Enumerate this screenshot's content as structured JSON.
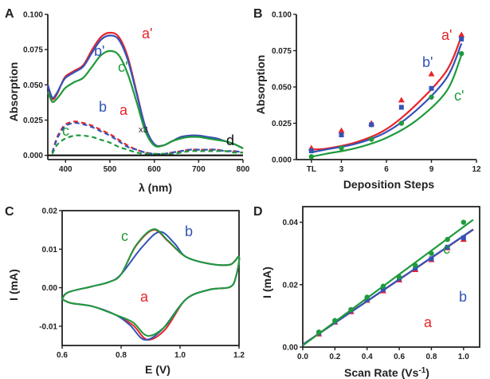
{
  "colors": {
    "a": "#e8242a",
    "b": "#3353b8",
    "c": "#1f9a3c",
    "d": "#111111",
    "axis": "#222222"
  },
  "chart_data": [
    {
      "panel": "A",
      "type": "line",
      "xlabel": "λ (nm)",
      "ylabel": "Absorption",
      "xlim": [
        360,
        800
      ],
      "ylim": [
        -0.003,
        0.1
      ],
      "xticks": [
        "400",
        "500",
        "600",
        "700",
        "800"
      ],
      "yticks": [
        "0.000",
        "0.025",
        "0.050",
        "0.075",
        "0.100"
      ],
      "annotations": {
        "x3": "x3"
      },
      "series": [
        {
          "name": "a'",
          "color": "a",
          "dash": false,
          "x": [
            360,
            370,
            380,
            390,
            400,
            420,
            440,
            460,
            480,
            500,
            520,
            540,
            560,
            580,
            600,
            620,
            640,
            660,
            680,
            700,
            720,
            740,
            760,
            780,
            800
          ],
          "y": [
            0.05,
            0.04,
            0.043,
            0.05,
            0.056,
            0.06,
            0.064,
            0.075,
            0.084,
            0.087,
            0.084,
            0.07,
            0.045,
            0.02,
            0.008,
            0.007,
            0.01,
            0.013,
            0.014,
            0.014,
            0.013,
            0.012,
            0.01,
            0.008,
            0.005
          ]
        },
        {
          "name": "b'",
          "color": "b",
          "dash": false,
          "x": [
            360,
            370,
            380,
            390,
            400,
            420,
            440,
            460,
            480,
            500,
            520,
            540,
            560,
            580,
            600,
            620,
            640,
            660,
            680,
            700,
            720,
            740,
            760,
            780,
            800
          ],
          "y": [
            0.05,
            0.041,
            0.044,
            0.05,
            0.055,
            0.059,
            0.063,
            0.073,
            0.082,
            0.085,
            0.082,
            0.068,
            0.044,
            0.02,
            0.008,
            0.007,
            0.01,
            0.013,
            0.014,
            0.014,
            0.013,
            0.012,
            0.01,
            0.008,
            0.005
          ]
        },
        {
          "name": "c'",
          "color": "c",
          "dash": false,
          "x": [
            360,
            370,
            380,
            390,
            400,
            420,
            440,
            460,
            480,
            500,
            520,
            540,
            560,
            580,
            600,
            620,
            640,
            660,
            680,
            700,
            720,
            740,
            760,
            780,
            800
          ],
          "y": [
            0.045,
            0.038,
            0.04,
            0.044,
            0.048,
            0.052,
            0.055,
            0.063,
            0.071,
            0.074,
            0.071,
            0.058,
            0.038,
            0.017,
            0.007,
            0.007,
            0.01,
            0.012,
            0.013,
            0.013,
            0.012,
            0.011,
            0.01,
            0.008,
            0.005
          ]
        },
        {
          "name": "a",
          "color": "a",
          "dash": true,
          "x": [
            370,
            380,
            390,
            400,
            420,
            440,
            460,
            480,
            500,
            520,
            540,
            560,
            580,
            600,
            620,
            640,
            660,
            680,
            700,
            720,
            740,
            760,
            780,
            800
          ],
          "y": [
            0.002,
            0.012,
            0.018,
            0.022,
            0.024,
            0.023,
            0.021,
            0.018,
            0.015,
            0.011,
            0.007,
            0.004,
            0.002,
            0.001,
            0.001,
            0.002,
            0.003,
            0.004,
            0.004,
            0.004,
            0.004,
            0.003,
            0.003,
            0.002
          ]
        },
        {
          "name": "b",
          "color": "b",
          "dash": true,
          "x": [
            370,
            380,
            390,
            400,
            420,
            440,
            460,
            480,
            500,
            520,
            540,
            560,
            580,
            600,
            620,
            640,
            660,
            680,
            700,
            720,
            740,
            760,
            780,
            800
          ],
          "y": [
            0.002,
            0.011,
            0.017,
            0.021,
            0.023,
            0.022,
            0.02,
            0.017,
            0.014,
            0.01,
            0.006,
            0.004,
            0.002,
            0.001,
            0.001,
            0.002,
            0.003,
            0.004,
            0.004,
            0.004,
            0.004,
            0.003,
            0.003,
            0.002
          ]
        },
        {
          "name": "c",
          "color": "c",
          "dash": true,
          "x": [
            370,
            380,
            390,
            400,
            420,
            440,
            460,
            480,
            500,
            520,
            540,
            560,
            580,
            600,
            620,
            640,
            660,
            680,
            700,
            720,
            740,
            760,
            780,
            800
          ],
          "y": [
            0.001,
            0.007,
            0.01,
            0.012,
            0.014,
            0.014,
            0.013,
            0.011,
            0.009,
            0.006,
            0.004,
            0.002,
            0.001,
            0.001,
            0.001,
            0.001,
            0.002,
            0.003,
            0.003,
            0.003,
            0.003,
            0.003,
            0.002,
            0.002
          ]
        },
        {
          "name": "d",
          "color": "d",
          "dash": false,
          "x": [
            360,
            400,
            500,
            600,
            700,
            800
          ],
          "y": [
            0.0,
            0.0,
            0.0,
            0.0,
            0.0,
            0.0
          ]
        }
      ]
    },
    {
      "panel": "B",
      "type": "scatter",
      "xlabel": "Deposition Steps",
      "ylabel": "Absorption",
      "xlim": [
        0,
        12
      ],
      "ylim": [
        0,
        0.1
      ],
      "xticks": [
        "TL",
        "3",
        "6",
        "9",
        "12"
      ],
      "yticks": [
        "0.000",
        "0.025",
        "0.050",
        "0.075",
        "0.100"
      ],
      "series": [
        {
          "name": "a'",
          "color": "a",
          "marker": "triangle",
          "x": [
            1,
            3,
            5,
            7,
            9,
            11
          ],
          "y": [
            0.008,
            0.02,
            0.025,
            0.041,
            0.059,
            0.086
          ],
          "fit": [
            0.007,
            0.0076,
            0.012,
            0.021,
            0.038,
            0.061,
            0.085
          ]
        },
        {
          "name": "b'",
          "color": "b",
          "marker": "square",
          "x": [
            1,
            3,
            5,
            7,
            9,
            11
          ],
          "y": [
            0.006,
            0.017,
            0.024,
            0.036,
            0.049,
            0.083
          ],
          "fit": [
            0.005,
            0.007,
            0.011,
            0.019,
            0.034,
            0.056,
            0.08
          ]
        },
        {
          "name": "c'",
          "color": "c",
          "marker": "circle",
          "x": [
            1,
            3,
            5,
            7,
            9,
            11
          ],
          "y": [
            0.002,
            0.008,
            0.014,
            0.025,
            0.043,
            0.073
          ],
          "fit": [
            0.002,
            0.004,
            0.008,
            0.015,
            0.027,
            0.047,
            0.072
          ]
        }
      ],
      "fit_x": [
        1,
        2,
        4,
        6,
        8,
        10,
        11
      ]
    },
    {
      "panel": "C",
      "type": "line",
      "xlabel": "E (V)",
      "ylabel": "I (mA)",
      "xlim": [
        0.6,
        1.2
      ],
      "ylim": [
        -0.015,
        0.02
      ],
      "xticks": [
        "0.6",
        "0.8",
        "1.0",
        "1.2"
      ],
      "yticks": [
        "-0.01",
        "0.00",
        "0.01",
        "0.02"
      ],
      "series": [
        {
          "name": "a",
          "color": "a",
          "peak_anodic": [
            0.91,
            0.015
          ],
          "peak_cathodic": [
            0.89,
            -0.0135
          ]
        },
        {
          "name": "b",
          "color": "b",
          "peak_anodic": [
            0.93,
            0.0145
          ],
          "peak_cathodic": [
            0.88,
            -0.0135
          ]
        },
        {
          "name": "c",
          "color": "c",
          "peak_anodic": [
            0.91,
            0.0152
          ],
          "peak_cathodic": [
            0.89,
            -0.0125
          ]
        }
      ]
    },
    {
      "panel": "D",
      "type": "scatter",
      "xlabel": "Scan Rate (Vs",
      "xlabel_sup": "-1",
      "xlabel_end": ")",
      "ylabel": "I (mA)",
      "xlim": [
        0,
        1.1
      ],
      "ylim": [
        0,
        0.045
      ],
      "xticks": [
        "0.0",
        "0.2",
        "0.4",
        "0.6",
        "0.8",
        "1.0"
      ],
      "yticks": [
        "0.00",
        "0.02",
        "0.04"
      ],
      "series": [
        {
          "name": "a",
          "color": "a",
          "marker": "triangle",
          "x": [
            0.1,
            0.2,
            0.3,
            0.4,
            0.5,
            0.6,
            0.7,
            0.8,
            0.9,
            1.0
          ],
          "y": [
            0.0042,
            0.008,
            0.0113,
            0.015,
            0.018,
            0.0215,
            0.0248,
            0.028,
            0.0318,
            0.0345
          ],
          "fit": [
            0.0008,
            0.0355
          ]
        },
        {
          "name": "b",
          "color": "b",
          "marker": "square",
          "x": [
            0.1,
            0.2,
            0.3,
            0.4,
            0.5,
            0.6,
            0.7,
            0.8,
            0.9,
            1.0
          ],
          "y": [
            0.0045,
            0.0082,
            0.0118,
            0.0153,
            0.0185,
            0.022,
            0.0253,
            0.0283,
            0.032,
            0.035
          ],
          "fit": [
            0.0008,
            0.0356
          ]
        },
        {
          "name": "c",
          "color": "c",
          "marker": "circle",
          "x": [
            0.1,
            0.2,
            0.3,
            0.4,
            0.5,
            0.6,
            0.7,
            0.8,
            0.9,
            1.0
          ],
          "y": [
            0.0048,
            0.0085,
            0.012,
            0.016,
            0.0195,
            0.0225,
            0.0262,
            0.03,
            0.0345,
            0.04
          ],
          "fit": [
            0.0005,
            0.0385
          ]
        }
      ]
    }
  ]
}
